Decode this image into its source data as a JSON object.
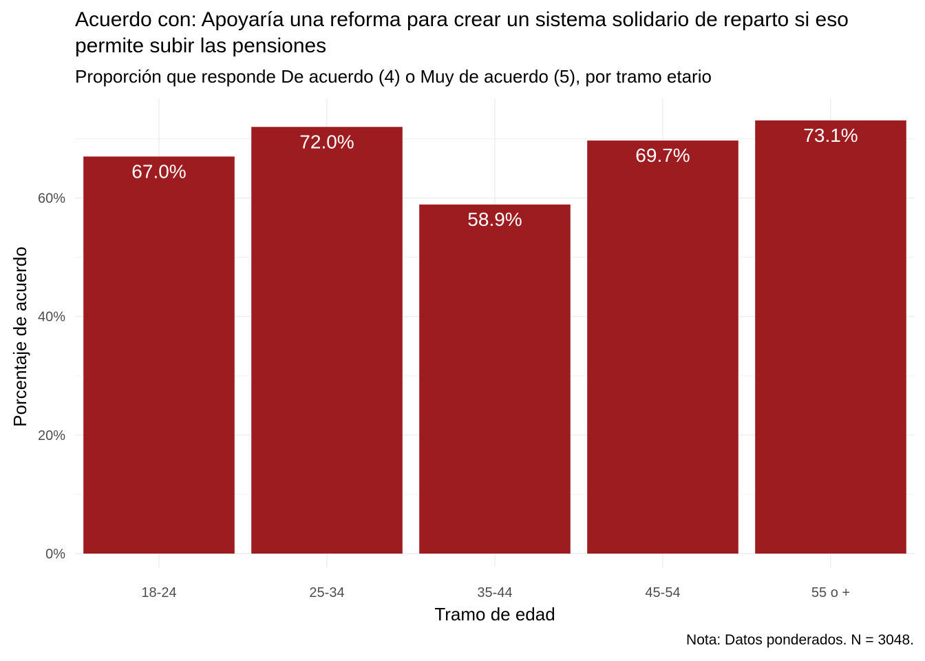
{
  "chart_data": {
    "type": "bar",
    "title": "Acuerdo con: Apoyaría una reforma para crear un sistema solidario de reparto si eso permite subir las pensiones",
    "subtitle": "Proporción que responde De acuerdo (4) o Muy de acuerdo (5), por tramo etario",
    "xlabel": "Tramo de edad",
    "ylabel": "Porcentaje de acuerdo",
    "caption": "Nota: Datos ponderados. N = 3048.",
    "categories": [
      "18-24",
      "25-34",
      "35-44",
      "45-54",
      "55 o +"
    ],
    "values": [
      67.0,
      72.0,
      58.9,
      69.7,
      73.1
    ],
    "data_labels": [
      "67.0%",
      "72.0%",
      "58.9%",
      "69.7%",
      "73.1%"
    ],
    "ylim": [
      0,
      76.8
    ],
    "y_ticks": [
      0,
      20,
      40,
      60
    ],
    "y_tick_labels": [
      "0%",
      "20%",
      "40%",
      "60%"
    ],
    "bar_color": "#9c1c1f",
    "grid": true
  }
}
